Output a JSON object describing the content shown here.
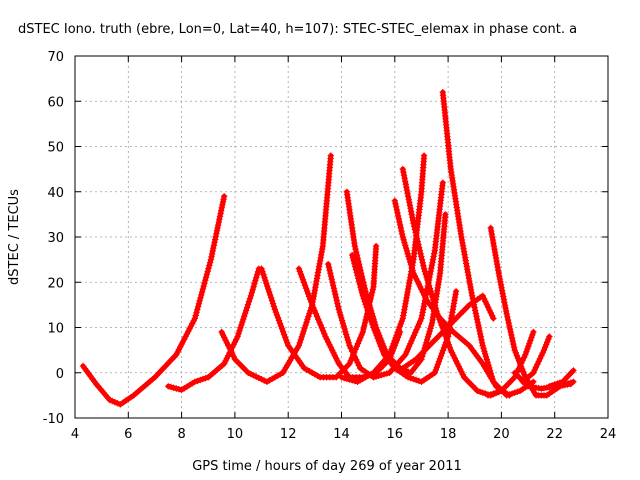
{
  "chart_data": {
    "type": "scatter",
    "title": "dSTEC Iono. truth (ebre, Lon=0, Lat=40, h=107): STEC-STEC_elemax in phase cont. a",
    "xlabel": "GPS time / hours of day 269 of year 2011",
    "ylabel": "dSTEC  / TECUs",
    "xlim": [
      4,
      24
    ],
    "ylim": [
      -10,
      70
    ],
    "xticks": [
      4,
      6,
      8,
      10,
      12,
      14,
      16,
      18,
      20,
      22,
      24
    ],
    "yticks": [
      -10,
      0,
      10,
      20,
      30,
      40,
      50,
      60,
      70
    ],
    "grid": true,
    "marker": "+",
    "color": "#ff0000",
    "series": [
      {
        "points": [
          [
            4.3,
            1.5
          ],
          [
            4.8,
            -2.5
          ],
          [
            5.3,
            -6
          ],
          [
            5.7,
            -7
          ],
          [
            6.2,
            -5
          ],
          [
            7.0,
            -1
          ],
          [
            7.8,
            4
          ],
          [
            8.5,
            12
          ],
          [
            9.1,
            25
          ],
          [
            9.6,
            39
          ]
        ]
      },
      {
        "points": [
          [
            7.5,
            -3
          ],
          [
            8.0,
            -3.8
          ],
          [
            8.5,
            -2
          ],
          [
            9.0,
            -1
          ],
          [
            9.6,
            2
          ],
          [
            10.1,
            8
          ],
          [
            10.6,
            17
          ],
          [
            10.9,
            23
          ]
        ]
      },
      {
        "points": [
          [
            9.5,
            9
          ],
          [
            10.0,
            3
          ],
          [
            10.5,
            0
          ],
          [
            11.2,
            -2
          ],
          [
            11.8,
            0
          ],
          [
            12.4,
            6
          ],
          [
            12.9,
            15
          ],
          [
            13.3,
            28
          ],
          [
            13.6,
            48
          ]
        ]
      },
      {
        "points": [
          [
            11.0,
            23
          ],
          [
            11.5,
            14
          ],
          [
            12.0,
            6
          ],
          [
            12.6,
            1
          ],
          [
            13.2,
            -1
          ],
          [
            13.8,
            -1
          ],
          [
            14.3,
            2
          ],
          [
            14.8,
            9
          ],
          [
            15.2,
            19
          ],
          [
            15.3,
            28
          ]
        ]
      },
      {
        "points": [
          [
            12.4,
            23
          ],
          [
            12.9,
            15
          ],
          [
            13.4,
            8
          ],
          [
            13.9,
            2
          ],
          [
            14.3,
            -1
          ],
          [
            14.8,
            -1
          ],
          [
            15.3,
            0
          ],
          [
            15.8,
            3
          ],
          [
            16.2,
            9
          ]
        ]
      },
      {
        "points": [
          [
            14.2,
            40
          ],
          [
            14.5,
            28
          ],
          [
            14.9,
            18
          ],
          [
            15.3,
            10
          ],
          [
            15.7,
            4
          ],
          [
            16.2,
            1
          ],
          [
            16.6,
            0
          ],
          [
            17.0,
            3
          ],
          [
            17.4,
            11
          ],
          [
            17.7,
            22
          ],
          [
            17.9,
            35
          ]
        ]
      },
      {
        "points": [
          [
            14.4,
            26
          ],
          [
            14.8,
            17
          ],
          [
            15.2,
            10
          ],
          [
            15.6,
            4
          ],
          [
            16.0,
            1
          ],
          [
            16.5,
            -1
          ],
          [
            17.0,
            -2
          ],
          [
            17.5,
            0
          ],
          [
            18.0,
            8
          ],
          [
            18.3,
            18
          ]
        ]
      },
      {
        "points": [
          [
            13.5,
            24
          ],
          [
            13.9,
            14
          ],
          [
            14.3,
            6
          ],
          [
            14.7,
            1
          ],
          [
            15.2,
            -1
          ],
          [
            15.8,
            0
          ],
          [
            16.4,
            4
          ],
          [
            17.0,
            12
          ],
          [
            17.5,
            27
          ],
          [
            17.8,
            42
          ]
        ]
      },
      {
        "points": [
          [
            14.0,
            -1
          ],
          [
            14.6,
            -2
          ],
          [
            15.2,
            0
          ],
          [
            15.8,
            4
          ],
          [
            16.3,
            12
          ],
          [
            16.7,
            25
          ],
          [
            17.0,
            40
          ],
          [
            17.1,
            48
          ]
        ]
      },
      {
        "points": [
          [
            16.0,
            38
          ],
          [
            16.3,
            30
          ],
          [
            16.7,
            22
          ],
          [
            17.2,
            16
          ],
          [
            17.7,
            12
          ],
          [
            18.2,
            9
          ],
          [
            18.8,
            6
          ],
          [
            19.3,
            2
          ],
          [
            19.8,
            -3
          ],
          [
            20.3,
            -5
          ]
        ]
      },
      {
        "points": [
          [
            16.3,
            45
          ],
          [
            16.7,
            33
          ],
          [
            17.1,
            23
          ],
          [
            17.6,
            13
          ],
          [
            18.1,
            5
          ],
          [
            18.6,
            -1
          ],
          [
            19.1,
            -4
          ],
          [
            19.6,
            -5
          ],
          [
            20.0,
            -4
          ]
        ]
      },
      {
        "points": [
          [
            17.8,
            62
          ],
          [
            18.1,
            45
          ],
          [
            18.5,
            30
          ],
          [
            18.9,
            17
          ],
          [
            19.3,
            6
          ],
          [
            19.7,
            -2
          ],
          [
            20.2,
            -5
          ],
          [
            20.7,
            -4
          ],
          [
            21.2,
            -2
          ]
        ]
      },
      {
        "points": [
          [
            16.3,
            1
          ],
          [
            16.8,
            3
          ],
          [
            17.3,
            6
          ],
          [
            17.8,
            9
          ],
          [
            18.3,
            12
          ],
          [
            18.8,
            15
          ],
          [
            19.3,
            17
          ],
          [
            19.7,
            12
          ]
        ]
      },
      {
        "points": [
          [
            19.6,
            32
          ],
          [
            19.9,
            22
          ],
          [
            20.2,
            13
          ],
          [
            20.5,
            5
          ],
          [
            20.9,
            -1
          ],
          [
            21.3,
            -5
          ],
          [
            21.7,
            -5
          ],
          [
            22.2,
            -3
          ],
          [
            22.7,
            -2
          ]
        ]
      },
      {
        "points": [
          [
            19.5,
            -5
          ],
          [
            20.0,
            -4
          ],
          [
            20.5,
            -1
          ],
          [
            20.9,
            4
          ],
          [
            21.2,
            9
          ]
        ]
      },
      {
        "points": [
          [
            20.5,
            0
          ],
          [
            21.0,
            -3
          ],
          [
            21.5,
            -3.5
          ],
          [
            22.0,
            -3
          ],
          [
            22.6,
            -2.5
          ]
        ]
      },
      {
        "points": [
          [
            20.8,
            -2
          ],
          [
            21.2,
            0
          ],
          [
            21.6,
            5
          ],
          [
            21.8,
            8
          ]
        ]
      },
      {
        "points": [
          [
            21.8,
            -3
          ],
          [
            22.3,
            -2
          ],
          [
            22.7,
            0.5
          ]
        ]
      }
    ]
  }
}
